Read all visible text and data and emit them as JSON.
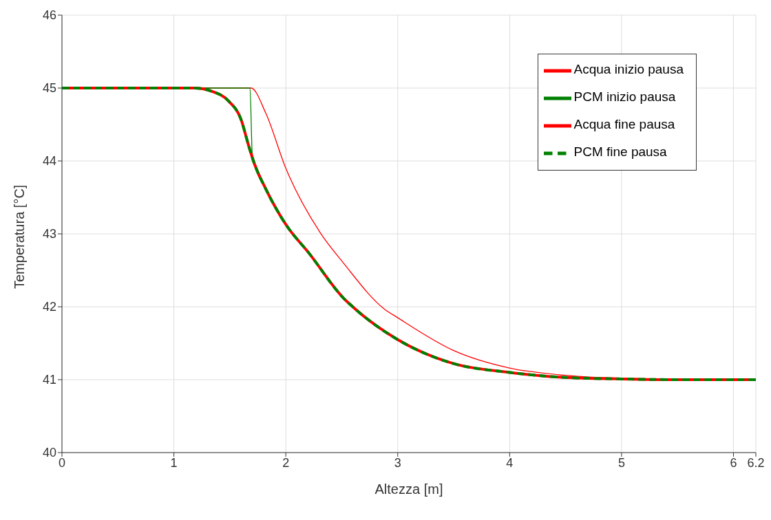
{
  "chart_data": {
    "type": "line",
    "xlabel": "Altezza [m]",
    "ylabel": "Temperatura [°C]",
    "xlim": [
      0,
      6.2
    ],
    "xticks": [
      0,
      1,
      2,
      3,
      4,
      5,
      6,
      6.2
    ],
    "ylim": [
      40,
      46
    ],
    "yticks": [
      40,
      41,
      42,
      43,
      44,
      45,
      46
    ],
    "grid": true,
    "legend": "top right",
    "marker": "none",
    "series": [
      {
        "name": "Acqua inizio pausa",
        "color": "#ff0000",
        "line_style": "solid",
        "x": [
          0,
          1.0,
          1.69,
          1.82,
          2.0,
          2.31,
          2.515,
          2.88,
          3.0,
          3.5,
          4.0,
          4.5,
          5.0,
          6.2
        ],
        "values": [
          45,
          45,
          45,
          44.66,
          43.9,
          43.01,
          42.6,
          41.97,
          41.85,
          41.4,
          41.16,
          41.06,
          41.02,
          41.0
        ]
      },
      {
        "name": "PCM inizio pausa",
        "color": "#008000",
        "line_style": "solid",
        "x": [
          0,
          1.0,
          1.5,
          1.68,
          1.7,
          1.72,
          1.82,
          2.0,
          2.21,
          2.515,
          2.62,
          3.0,
          3.5,
          4.0,
          4.5,
          5.0,
          5.5,
          6.2
        ],
        "values": [
          45,
          45,
          45,
          45,
          44.1,
          43.96,
          43.62,
          43.13,
          42.73,
          42.12,
          41.97,
          41.55,
          41.22,
          41.1,
          41.03,
          41.01,
          41.0,
          41.0
        ]
      },
      {
        "name": "Acqua fine pausa",
        "color": "#ff0000",
        "line_style": "solid",
        "x": [
          0,
          1.0,
          1.18,
          1.35,
          1.49,
          1.6,
          1.67,
          1.72,
          1.82,
          2.0,
          2.21,
          2.515,
          2.62,
          3.0,
          3.5,
          4.0,
          4.5,
          5.0,
          5.5,
          6.2
        ],
        "values": [
          45,
          45,
          45,
          44.95,
          44.82,
          44.57,
          44.2,
          43.96,
          43.62,
          43.13,
          42.73,
          42.12,
          41.97,
          41.55,
          41.22,
          41.1,
          41.03,
          41.01,
          41.0,
          41.0
        ]
      },
      {
        "name": "PCM fine pausa",
        "color": "#008000",
        "line_style": "dashed",
        "x": [
          0,
          1.0,
          1.18,
          1.35,
          1.49,
          1.6,
          1.67,
          1.72,
          1.82,
          2.0,
          2.21,
          2.515,
          2.62,
          3.0,
          3.5,
          4.0,
          4.5,
          5.0,
          5.5,
          6.2
        ],
        "values": [
          45,
          45,
          45,
          44.95,
          44.82,
          44.57,
          44.2,
          43.96,
          43.62,
          43.13,
          42.73,
          42.12,
          41.97,
          41.55,
          41.22,
          41.1,
          41.03,
          41.01,
          41.0,
          41.0
        ]
      }
    ]
  }
}
